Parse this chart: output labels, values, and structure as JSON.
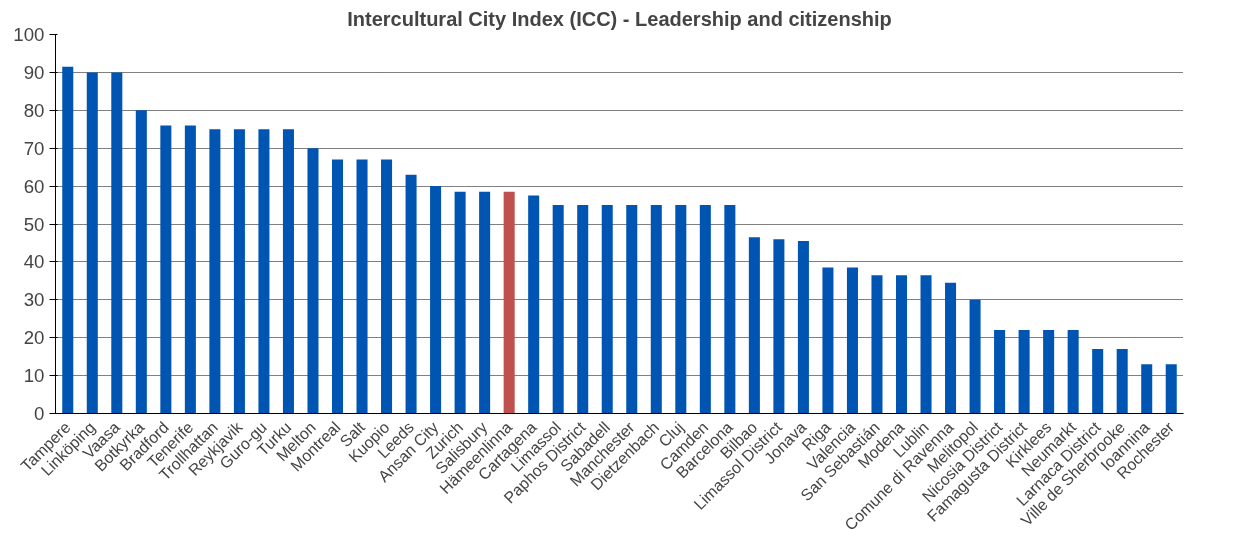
{
  "chart_data": {
    "type": "bar",
    "title": "Intercultural City Index (ICC) - Leadership and citizenship",
    "categories": [
      "Tampere",
      "Linköping",
      "Vaasa",
      "Botkyrka",
      "Bradford",
      "Tenerife",
      "Trollhattan",
      "Reykjavik",
      "Guro-gu",
      "Turku",
      "Melton",
      "Montreal",
      "Salt",
      "Kuopio",
      "Leeds",
      "Ansan City",
      "Zurich",
      "Salisbury",
      "Hämeenlinna",
      "Cartagena",
      "Limassol",
      "Paphos District",
      "Sabadell",
      "Manchester",
      "Dietzenbach",
      "Cluj",
      "Camden",
      "Barcelona",
      "Bilbao",
      "Limassol District",
      "Jonava",
      "Riga",
      "Valencia",
      "San Sebastián",
      "Modena",
      "Lublin",
      "Comune di Ravenna",
      "Melitopol",
      "Nicosia District",
      "Famagusta District",
      "Kirklees",
      "Neumarkt",
      "Larnaca District",
      "Ville de Sherbrooke",
      "Ioannina",
      "Rochester"
    ],
    "values": [
      91.5,
      90,
      90,
      80,
      76,
      76,
      75,
      75,
      75,
      75,
      70,
      67,
      67,
      67,
      63,
      60,
      58.5,
      58.5,
      58.5,
      57.5,
      55,
      55,
      55,
      55,
      55,
      55,
      55,
      55,
      46.5,
      46,
      45.5,
      38.5,
      38.5,
      36.5,
      36.5,
      36.5,
      34.5,
      30,
      22,
      22,
      22,
      22,
      17,
      17,
      13,
      13
    ],
    "colors": [
      "#0055b3",
      "#0055b3",
      "#0055b3",
      "#0055b3",
      "#0055b3",
      "#0055b3",
      "#0055b3",
      "#0055b3",
      "#0055b3",
      "#0055b3",
      "#0055b3",
      "#0055b3",
      "#0055b3",
      "#0055b3",
      "#0055b3",
      "#0055b3",
      "#0055b3",
      "#0055b3",
      "#c0504d",
      "#0055b3",
      "#0055b3",
      "#0055b3",
      "#0055b3",
      "#0055b3",
      "#0055b3",
      "#0055b3",
      "#0055b3",
      "#0055b3",
      "#0055b3",
      "#0055b3",
      "#0055b3",
      "#0055b3",
      "#0055b3",
      "#0055b3",
      "#0055b3",
      "#0055b3",
      "#0055b3",
      "#0055b3",
      "#0055b3",
      "#0055b3",
      "#0055b3",
      "#0055b3",
      "#0055b3",
      "#0055b3",
      "#0055b3",
      "#0055b3"
    ],
    "ylim": [
      0,
      100
    ],
    "yticks": [
      0,
      10,
      20,
      30,
      40,
      50,
      60,
      70,
      80,
      90,
      100
    ],
    "grid": "y"
  }
}
